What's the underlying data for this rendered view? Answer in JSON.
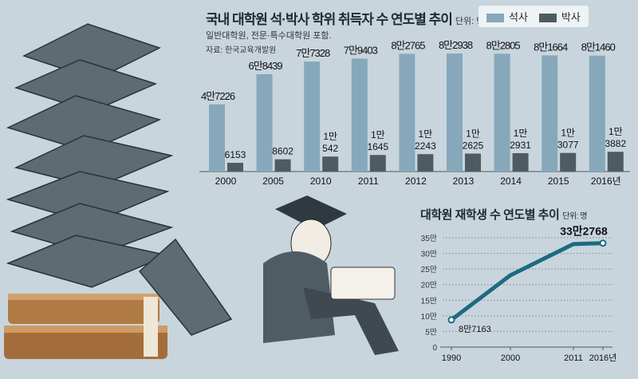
{
  "chart_data": [
    {
      "type": "bar",
      "title": "국내 대학원 석·박사 학위 취득자 수 연도별 추이",
      "unit": "단위: 명",
      "subtitle": "일반대학원, 전문·특수대학원 포함.",
      "source": "자료: 한국교육개발원",
      "categories": [
        "2000",
        "2005",
        "2010",
        "2011",
        "2012",
        "2013",
        "2014",
        "2015",
        "2016년"
      ],
      "series": [
        {
          "name": "석사",
          "color": "#86a8ba",
          "values": [
            47226,
            68439,
            77328,
            79403,
            82765,
            82938,
            82805,
            81664,
            81460
          ],
          "labels": [
            "4만7226",
            "6만8439",
            "7만7328",
            "7만9403",
            "8만2765",
            "8만2938",
            "8만2805",
            "8만1664",
            "8만1460"
          ]
        },
        {
          "name": "박사",
          "color": "#4e5b61",
          "values": [
            6153,
            8602,
            10542,
            11645,
            12243,
            12625,
            12931,
            13077,
            13882
          ],
          "labels": [
            [
              "6153"
            ],
            [
              "8602"
            ],
            [
              "1만",
              "542"
            ],
            [
              "1만",
              "1645"
            ],
            [
              "1만",
              "2243"
            ],
            [
              "1만",
              "2625"
            ],
            [
              "1만",
              "2931"
            ],
            [
              "1만",
              "3077"
            ],
            [
              "1만",
              "3882"
            ]
          ]
        }
      ],
      "legend": "top-right"
    },
    {
      "type": "line",
      "title": "대학원 재학생 수 연도별 추이",
      "unit": "단위: 명",
      "x": [
        "1990",
        "2000",
        "2011",
        "2016년"
      ],
      "x_values": [
        1990,
        2000,
        2011,
        2016
      ],
      "values": [
        87163,
        230000,
        330000,
        332768
      ],
      "point_labels": [
        "8만7163",
        "",
        "",
        "33만2768"
      ],
      "yticks": [
        "0",
        "5만",
        "10만",
        "15만",
        "20만",
        "25만",
        "30만",
        "35만"
      ],
      "ylim": [
        0,
        350000
      ],
      "color": "#1d6a80"
    }
  ]
}
